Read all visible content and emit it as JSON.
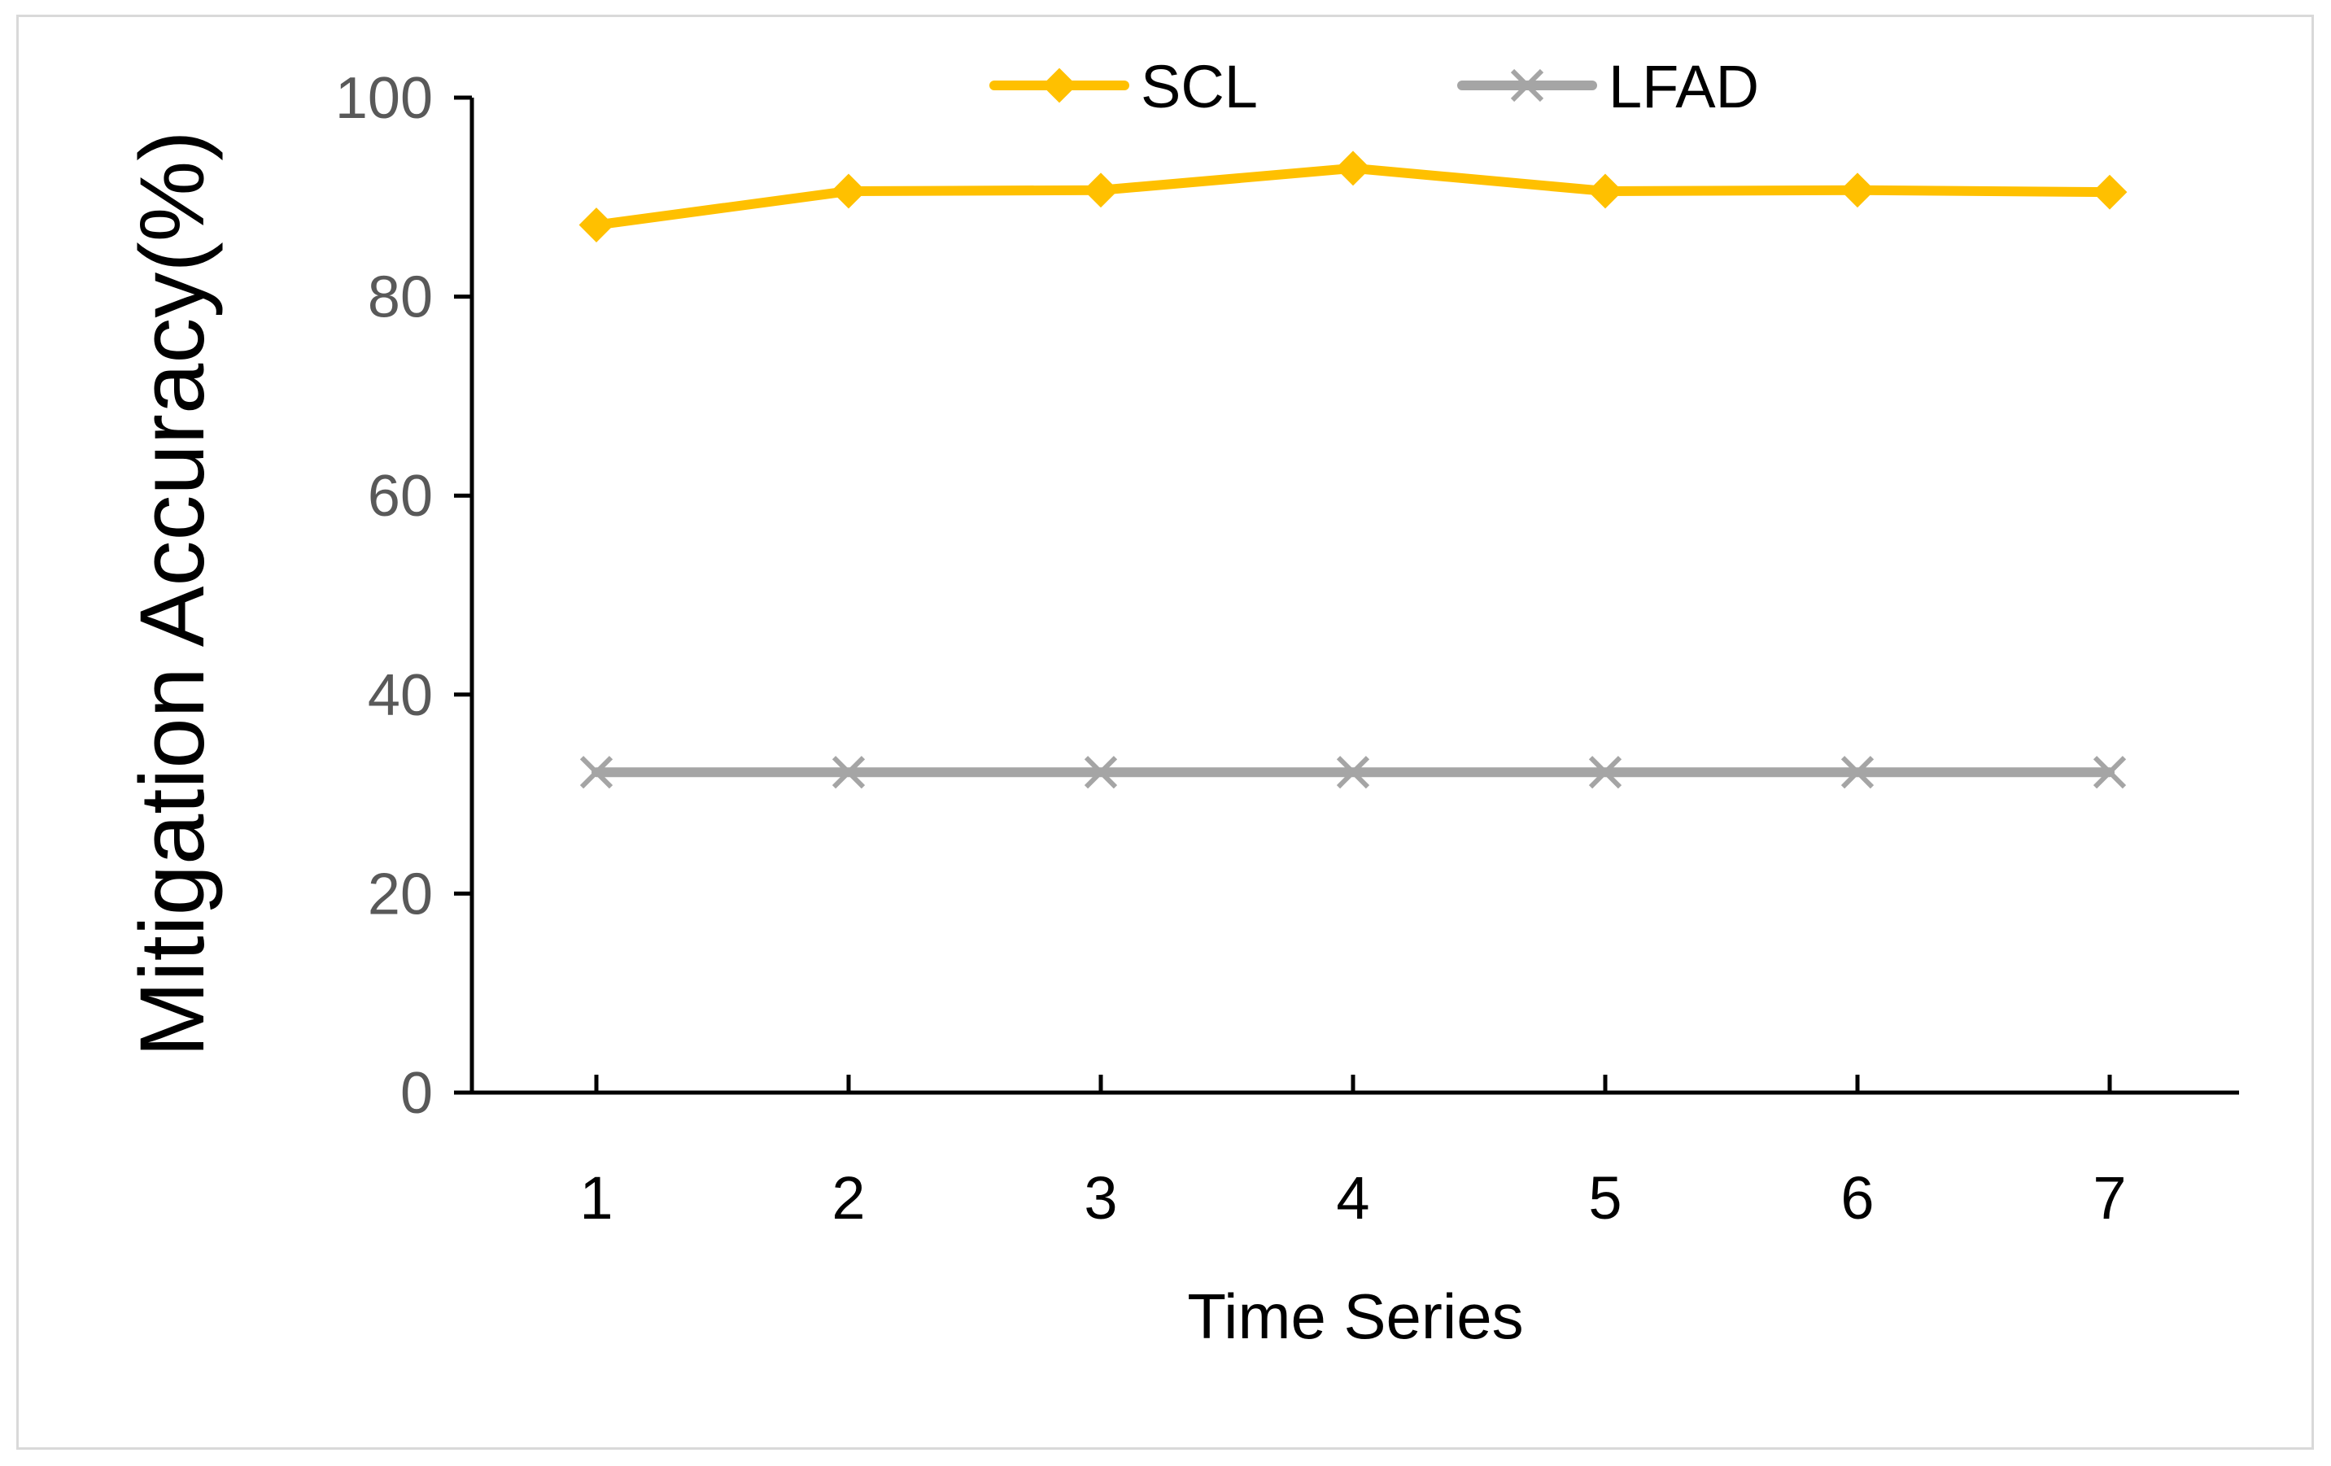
{
  "chart_data": {
    "type": "line",
    "title": "",
    "xlabel": "Time Series",
    "ylabel": "Mitigation Accuracy(%)",
    "x": [
      1,
      2,
      3,
      4,
      5,
      6,
      7
    ],
    "categories": [
      "1",
      "2",
      "3",
      "4",
      "5",
      "6",
      "7"
    ],
    "ylim": [
      0,
      100
    ],
    "yticks": [
      0,
      20,
      40,
      60,
      80,
      100
    ],
    "ytick_labels": [
      "0",
      "20",
      "40",
      "60",
      "80",
      "100"
    ],
    "grid": false,
    "legend_position": "top",
    "series": [
      {
        "name": "SCL",
        "values": [
          87.2,
          90.6,
          90.7,
          92.9,
          90.6,
          90.7,
          90.5
        ],
        "color": "#FFC000",
        "marker": "diamond"
      },
      {
        "name": "LFAD",
        "values": [
          32.2,
          32.2,
          32.2,
          32.2,
          32.2,
          32.2,
          32.2
        ],
        "color": "#A5A5A5",
        "marker": "x"
      }
    ]
  }
}
